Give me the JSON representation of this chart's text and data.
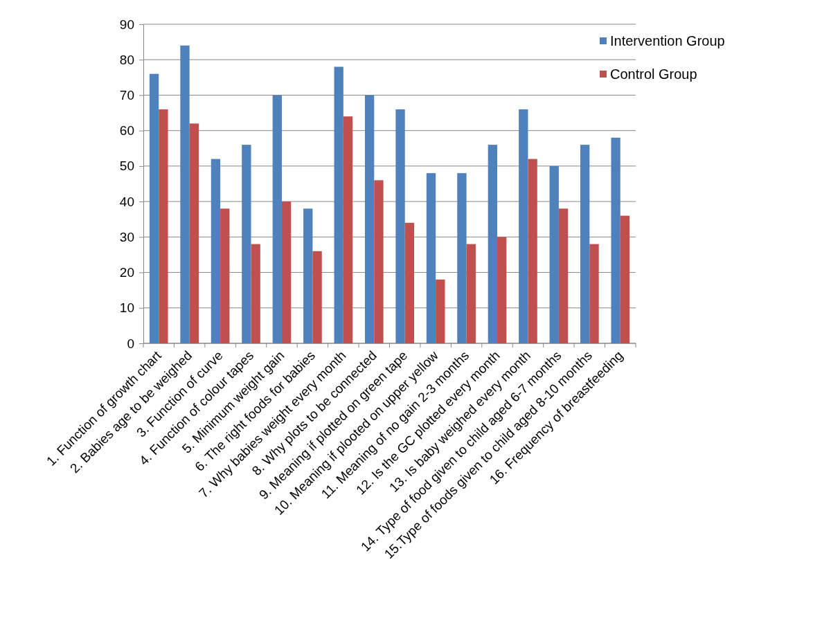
{
  "chart_data": {
    "type": "bar",
    "categories": [
      "1. Function of growth chart",
      "2. Babies age to be weighed",
      "3. Function of curve",
      "4. Function of colour tapes",
      "5. Minimum weight gain",
      "6. The right foods for babies",
      "7. Why babies weight every month",
      "8. Why plots to be connected",
      "9. Meaning if plotted on green tape",
      "10. Meaning if plooted on upper yellow",
      "11. Meaning of no gain 2-3 months",
      "12. Is the GC plotted every month",
      "13. Is baby weighed every month",
      "14. Type of food given to child aged 6-7 months",
      "15.Type of foods given to child aged 8-10 months",
      "16. Frequency of breastfeeding"
    ],
    "series": [
      {
        "name": "Intervention Group",
        "color": "#4f81bd",
        "values": [
          76,
          84,
          52,
          56,
          70,
          38,
          78,
          70,
          66,
          48,
          48,
          56,
          66,
          50,
          56,
          58
        ]
      },
      {
        "name": "Control Group",
        "color": "#c0504d",
        "values": [
          66,
          62,
          38,
          28,
          40,
          26,
          64,
          46,
          34,
          18,
          28,
          30,
          52,
          38,
          28,
          36
        ]
      }
    ],
    "ylim": [
      0,
      90
    ],
    "yticks": [
      0,
      10,
      20,
      30,
      40,
      50,
      60,
      70,
      80,
      90
    ],
    "grid": "y",
    "legend": "top right"
  }
}
